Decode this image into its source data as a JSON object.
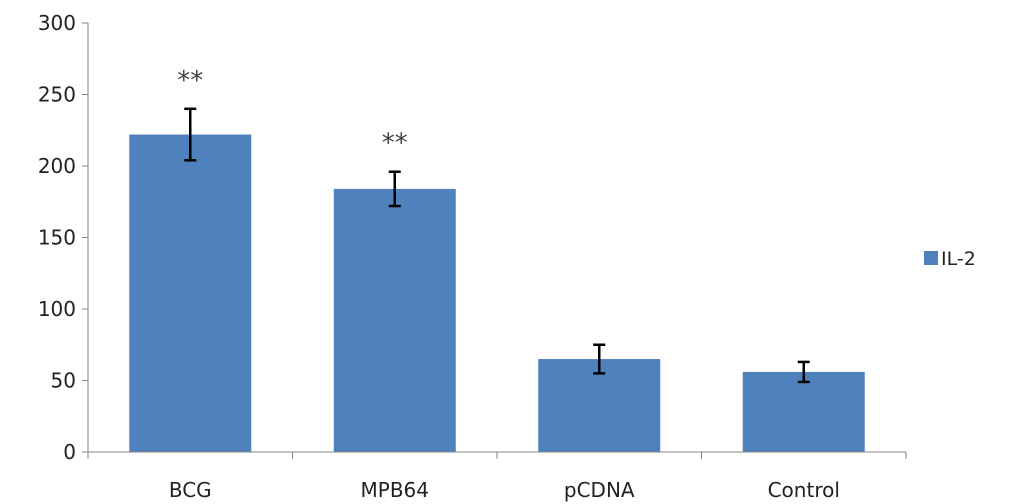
{
  "chart_data": {
    "type": "bar",
    "categories": [
      "BCG",
      "MPB64",
      "pCDNA",
      "Control"
    ],
    "series": [
      {
        "name": "IL-2",
        "values": [
          222,
          184,
          65,
          56
        ],
        "error": [
          18,
          12,
          10,
          7
        ],
        "annotations": [
          "**",
          "**",
          "",
          ""
        ]
      }
    ],
    "title": "",
    "xlabel": "",
    "ylabel": "",
    "ylim": [
      0,
      300
    ],
    "yticks": [
      0,
      50,
      100,
      150,
      200,
      250,
      300
    ],
    "grid": false,
    "legend": "right",
    "colors": {
      "bar": "#4f81bd",
      "error_bar": "#000000",
      "axis": "#868686"
    }
  }
}
